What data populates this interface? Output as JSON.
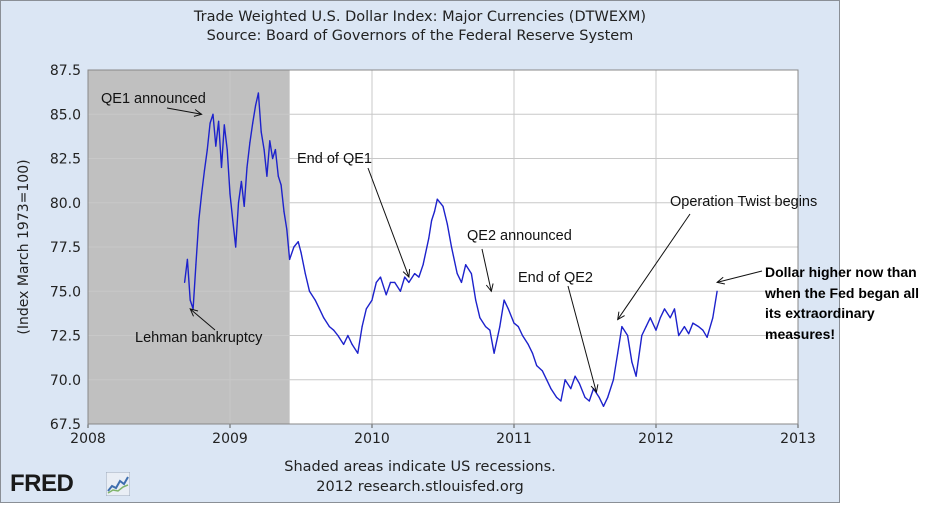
{
  "chart_data": {
    "type": "line",
    "title": "Trade Weighted U.S. Dollar Index: Major Currencies (DTWEXM)",
    "subtitle": "Source: Board of Governors of the Federal Reserve System",
    "ylabel": "(Index March 1973=100)",
    "xlabel": "",
    "xlim": [
      2008,
      2013
    ],
    "ylim": [
      67.5,
      87.5
    ],
    "x_ticks": [
      "2008",
      "2009",
      "2010",
      "2011",
      "2012",
      "2013"
    ],
    "y_ticks": [
      "67.5",
      "70.0",
      "72.5",
      "75.0",
      "77.5",
      "80.0",
      "82.5",
      "85.0",
      "87.5"
    ],
    "grid": true,
    "recession": {
      "start": 2008.0,
      "end": 2009.42
    },
    "series": [
      {
        "name": "DTWEXM",
        "color": "#1d22cc",
        "x": [
          2008.68,
          2008.7,
          2008.72,
          2008.74,
          2008.76,
          2008.78,
          2008.8,
          2008.82,
          2008.84,
          2008.86,
          2008.88,
          2008.9,
          2008.92,
          2008.94,
          2008.96,
          2008.98,
          2009.0,
          2009.02,
          2009.04,
          2009.06,
          2009.08,
          2009.1,
          2009.12,
          2009.14,
          2009.16,
          2009.18,
          2009.2,
          2009.22,
          2009.24,
          2009.26,
          2009.28,
          2009.3,
          2009.32,
          2009.34,
          2009.36,
          2009.38,
          2009.4,
          2009.42,
          2009.45,
          2009.48,
          2009.5,
          2009.53,
          2009.56,
          2009.6,
          2009.63,
          2009.66,
          2009.7,
          2009.73,
          2009.76,
          2009.8,
          2009.83,
          2009.86,
          2009.9,
          2009.93,
          2009.96,
          2010.0,
          2010.03,
          2010.06,
          2010.1,
          2010.13,
          2010.16,
          2010.2,
          2010.23,
          2010.26,
          2010.3,
          2010.33,
          2010.36,
          2010.4,
          2010.42,
          2010.44,
          2010.46,
          2010.48,
          2010.5,
          2010.53,
          2010.56,
          2010.6,
          2010.63,
          2010.66,
          2010.7,
          2010.73,
          2010.76,
          2010.8,
          2010.83,
          2010.86,
          2010.9,
          2010.93,
          2010.96,
          2011.0,
          2011.03,
          2011.06,
          2011.1,
          2011.13,
          2011.16,
          2011.2,
          2011.23,
          2011.26,
          2011.3,
          2011.33,
          2011.36,
          2011.4,
          2011.43,
          2011.46,
          2011.5,
          2011.53,
          2011.56,
          2011.6,
          2011.63,
          2011.66,
          2011.7,
          2011.73,
          2011.76,
          2011.8,
          2011.83,
          2011.86,
          2011.9,
          2011.93,
          2011.96,
          2012.0,
          2012.03,
          2012.06,
          2012.1,
          2012.13,
          2012.16,
          2012.2,
          2012.23,
          2012.26,
          2012.3,
          2012.33,
          2012.36,
          2012.4,
          2012.43
        ],
        "values": [
          75.5,
          76.8,
          74.5,
          74.0,
          76.5,
          79.0,
          80.5,
          81.8,
          83.0,
          84.5,
          85.0,
          83.2,
          84.6,
          82.0,
          84.4,
          83.0,
          80.5,
          79.0,
          77.5,
          80.0,
          81.2,
          79.8,
          82.0,
          83.4,
          84.5,
          85.5,
          86.2,
          84.0,
          83.0,
          81.5,
          83.5,
          82.5,
          83.0,
          81.5,
          81.0,
          79.5,
          78.5,
          76.8,
          77.5,
          77.8,
          77.2,
          76.0,
          75.0,
          74.5,
          74.0,
          73.5,
          73.0,
          72.8,
          72.5,
          72.0,
          72.5,
          72.0,
          71.5,
          73.0,
          74.0,
          74.5,
          75.5,
          75.8,
          74.8,
          75.5,
          75.5,
          75.0,
          75.8,
          75.5,
          76.0,
          75.8,
          76.5,
          78.0,
          79.0,
          79.5,
          80.2,
          80.0,
          79.8,
          78.8,
          77.5,
          76.0,
          75.5,
          76.5,
          76.0,
          74.5,
          73.5,
          73.0,
          72.8,
          71.5,
          73.0,
          74.5,
          74.0,
          73.2,
          73.0,
          72.5,
          72.0,
          71.5,
          70.8,
          70.5,
          70.0,
          69.5,
          69.0,
          68.8,
          70.0,
          69.5,
          70.2,
          69.8,
          69.0,
          68.8,
          69.5,
          69.0,
          68.5,
          69.0,
          70.0,
          71.5,
          73.0,
          72.5,
          71.0,
          70.2,
          72.5,
          73.0,
          73.5,
          72.8,
          73.5,
          74.0,
          73.5,
          74.0,
          72.5,
          73.0,
          72.6,
          73.2,
          73.0,
          72.8,
          72.4,
          73.5,
          75.0
        ]
      }
    ],
    "annotations": [
      {
        "text": "QE1 announced",
        "x": 2008.8,
        "y": 85.0
      },
      {
        "text": "Lehman bankruptcy",
        "x": 2008.72,
        "y": 74.0
      },
      {
        "text": "End of QE1",
        "x": 2010.26,
        "y": 75.8
      },
      {
        "text": "QE2 announced",
        "x": 2010.84,
        "y": 75.0
      },
      {
        "text": "End of QE2",
        "x": 2011.58,
        "y": 69.3
      },
      {
        "text": "Operation Twist begins",
        "x": 2011.73,
        "y": 73.4
      },
      {
        "text": "Dollar higher now than when the Fed began all its extraordinary measures!",
        "x": 2012.43,
        "y": 75.5
      }
    ]
  },
  "annotation_labels": {
    "qe1_announced": "QE1 announced",
    "lehman": "Lehman bankruptcy",
    "end_qe1": "End of QE1",
    "qe2_announced": "QE2 announced",
    "end_qe2": "End of QE2",
    "operation_twist": "Operation Twist begins"
  },
  "side_note": {
    "line1": "Dollar higher now than",
    "line2": "when the Fed began all",
    "line3": "its extraordinary",
    "line4": "measures!"
  },
  "footer": {
    "line1": "Shaded areas indicate US recessions.",
    "line2": "2012 research.stlouisfed.org"
  },
  "logo": {
    "text": "FRED"
  },
  "colors": {
    "frame_bg": "#dbe6f4",
    "plot_bg": "#ffffff",
    "recession": "#c0c0c0",
    "grid": "#c8c8c8",
    "line": "#1d22cc"
  }
}
